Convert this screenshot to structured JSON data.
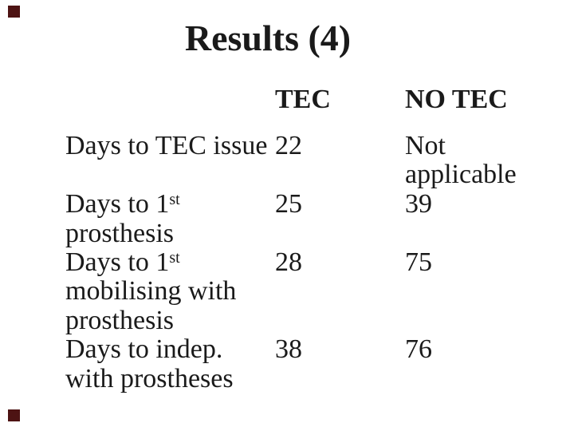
{
  "slide": {
    "title": "Results (4)",
    "background_color": "#ffffff",
    "text_color": "#1a1a1a",
    "corner_marker_color": "#4d1313",
    "table": {
      "column_headers": {
        "tec": "TEC",
        "no_tec": "NO TEC"
      },
      "rows": [
        {
          "label_lines": [
            "Days to TEC issue"
          ],
          "tec": "22",
          "no_tec_lines": [
            "Not",
            "applicable"
          ]
        },
        {
          "label_prefix": "Days to 1",
          "label_sup": "st",
          "label_lines": [
            "prosthesis"
          ],
          "tec": "25",
          "no_tec_lines": [
            "39"
          ]
        },
        {
          "label_prefix": "Days to 1",
          "label_sup": "st",
          "label_lines": [
            "mobilising with",
            "prosthesis"
          ],
          "tec": "28",
          "no_tec_lines": [
            "75"
          ]
        },
        {
          "label_lines": [
            "Days to indep.",
            "with prostheses"
          ],
          "tec": "38",
          "no_tec_lines": [
            "76"
          ]
        }
      ]
    }
  }
}
